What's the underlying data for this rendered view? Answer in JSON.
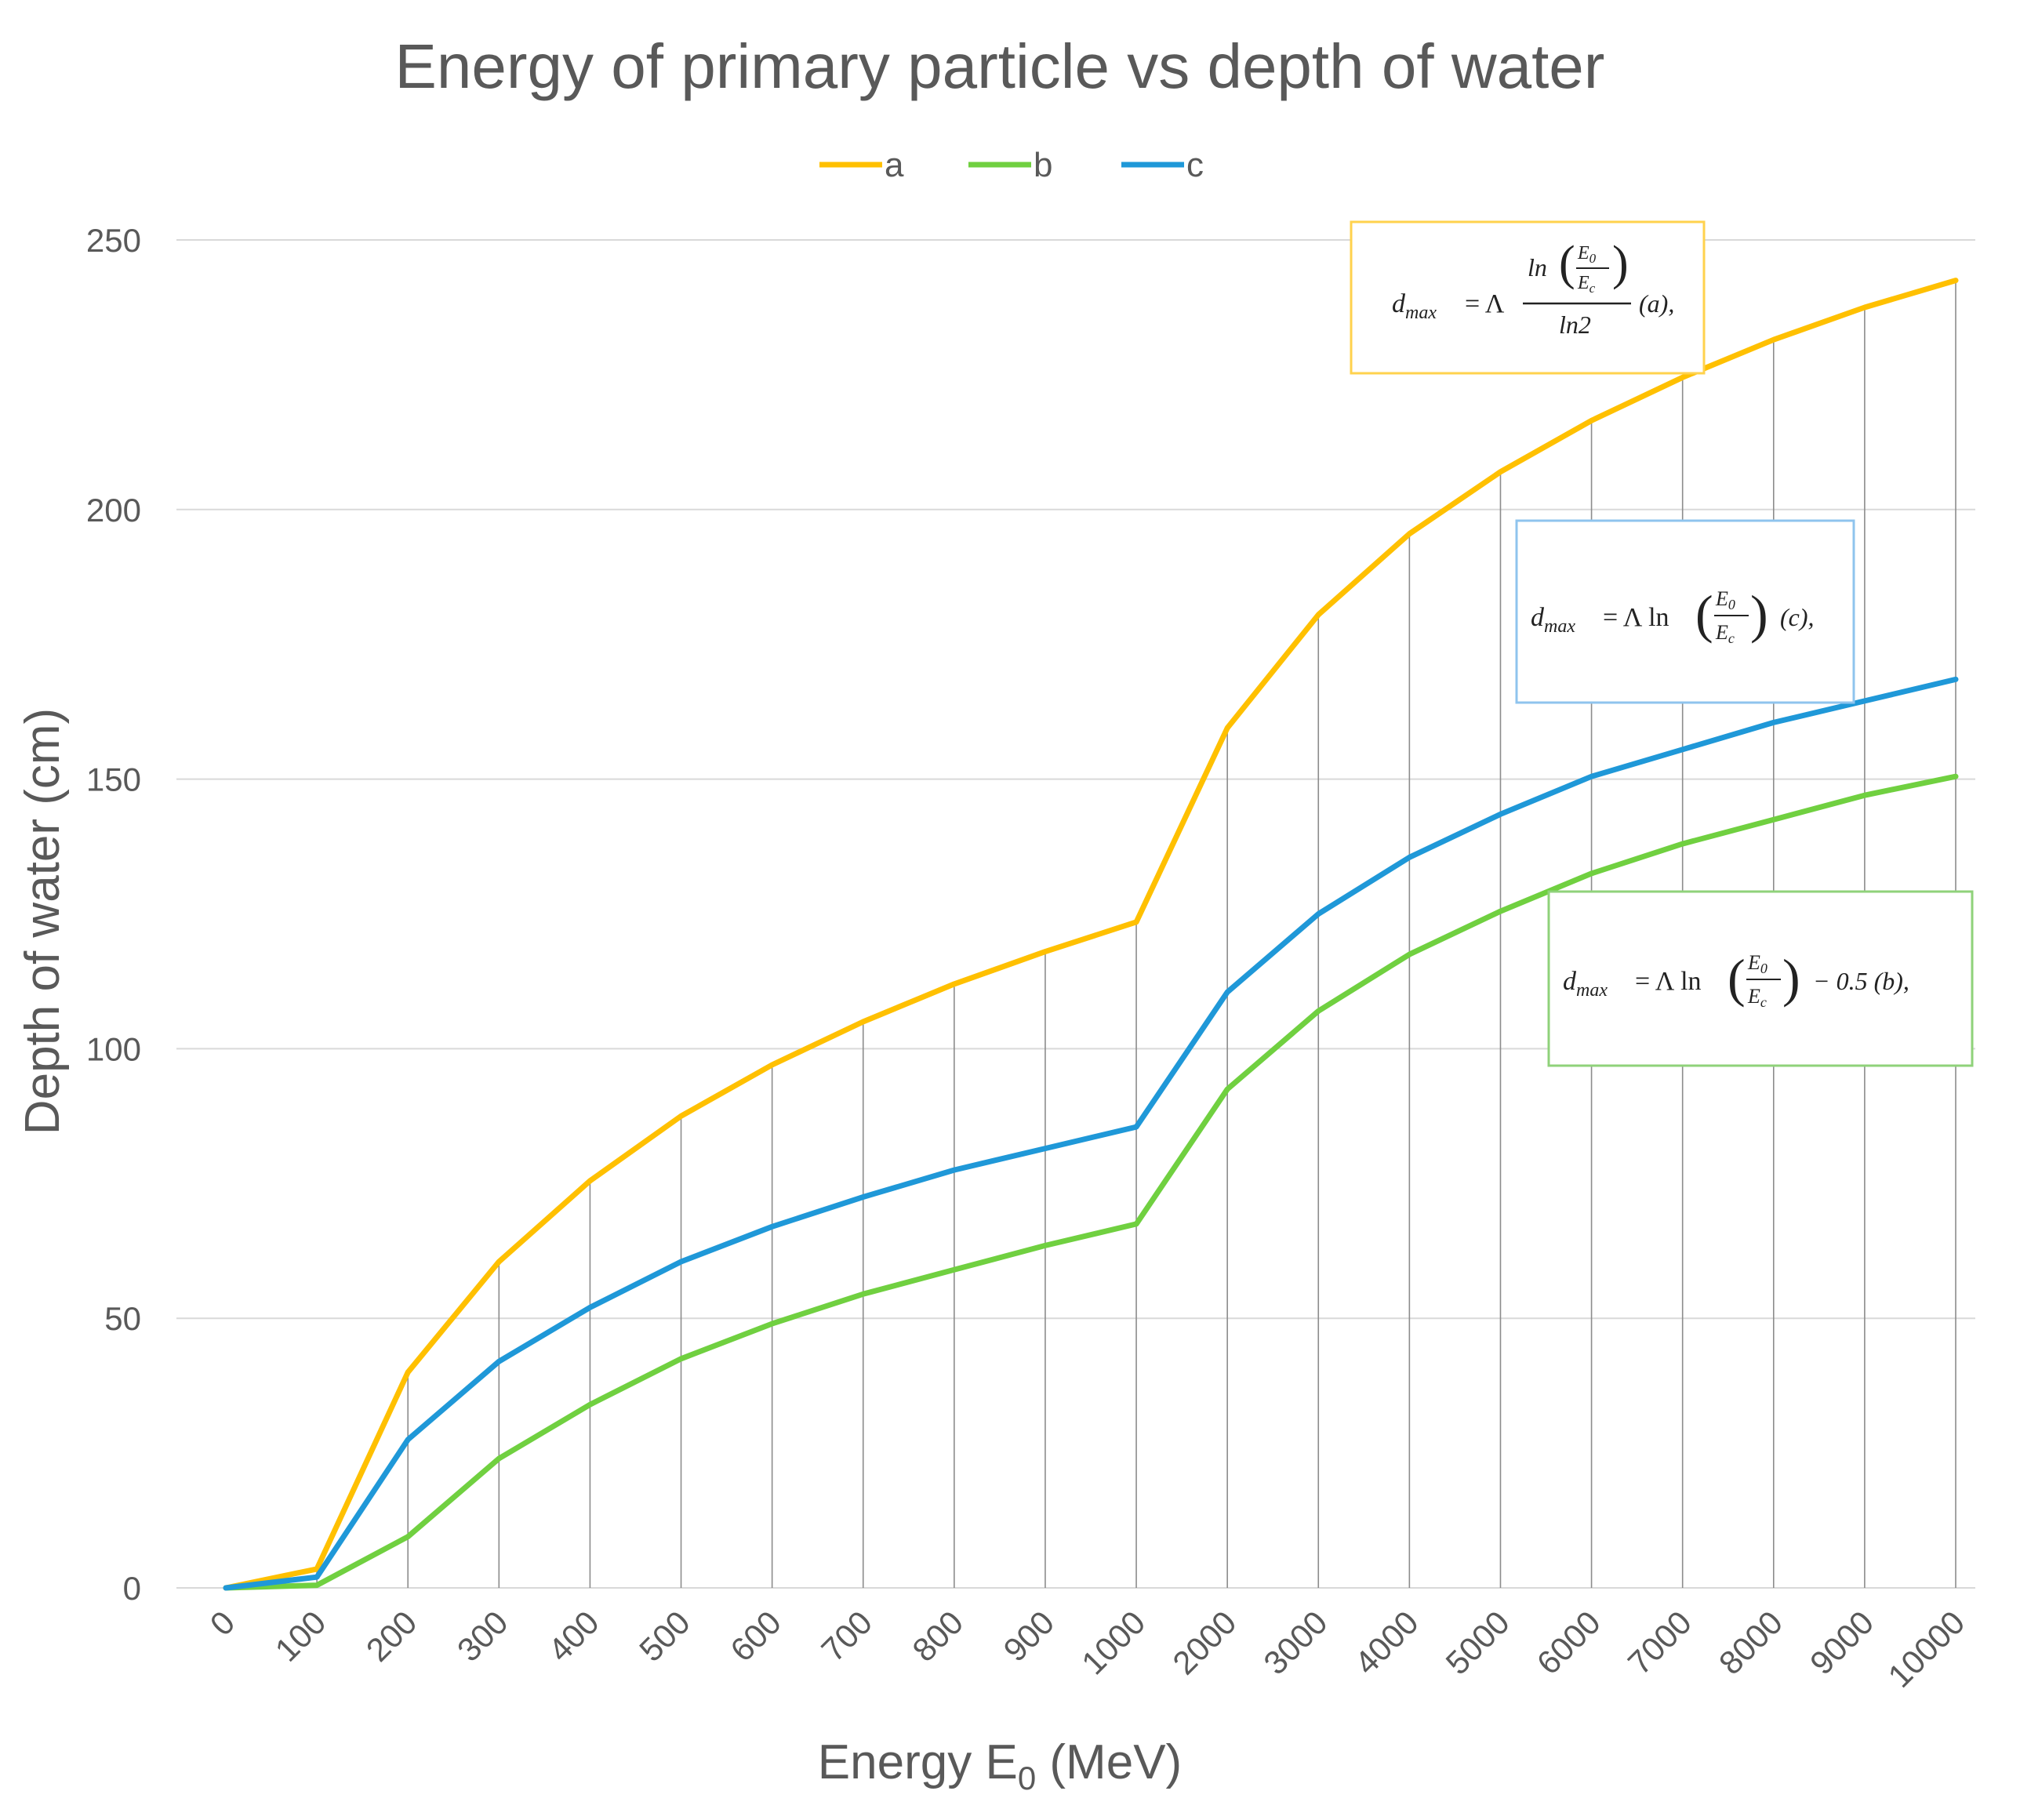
{
  "chart_data": {
    "type": "line",
    "title": "Energy of primary particle vs depth of water",
    "xlabel_main": "Energy E",
    "xlabel_sub": "0",
    "xlabel_unit": " (MeV)",
    "ylabel": "Depth of water (cm)",
    "categories": [
      "0",
      "100",
      "200",
      "300",
      "400",
      "500",
      "600",
      "700",
      "800",
      "900",
      "1000",
      "2000",
      "3000",
      "4000",
      "5000",
      "6000",
      "7000",
      "8000",
      "9000",
      "10000"
    ],
    "ylim": [
      0,
      250
    ],
    "yticks": [
      "0",
      "50",
      "100",
      "150",
      "200",
      "250"
    ],
    "grid": "horizontal and vertical",
    "legend_position": "top-center",
    "series": [
      {
        "name": "a",
        "color": "#FFC000",
        "values": [
          0,
          3.5,
          40,
          60.5,
          75.5,
          87.5,
          97,
          105,
          112,
          118,
          123.5,
          159.5,
          180.5,
          195.5,
          207,
          216.5,
          224.5,
          231.5,
          237.5,
          242.5
        ]
      },
      {
        "name": "b",
        "color": "#70D040",
        "values": [
          0,
          0.5,
          9.5,
          24,
          34,
          42.5,
          49,
          54.5,
          59,
          63.5,
          67.5,
          92.5,
          107,
          117.5,
          125.5,
          132.5,
          138,
          142.5,
          147,
          150.5
        ]
      },
      {
        "name": "c",
        "color": "#1F98D8",
        "values": [
          0,
          2,
          27.5,
          42,
          52,
          60.5,
          67,
          72.5,
          77.5,
          81.5,
          85.5,
          110.5,
          125,
          135.5,
          143.5,
          150.5,
          155.5,
          160.5,
          164.5,
          168.5
        ]
      }
    ],
    "annotations": [
      {
        "series": "a",
        "border_color": "#FFD24D",
        "lhs": "d",
        "lhs_sub": "max",
        "eq": "= Λ",
        "num": "ln",
        "num_E": "E",
        "num_E_sub": "0",
        "num_Ec": "E",
        "num_Ec_sub": "c",
        "den": "ln2",
        "suffix": "(a),"
      },
      {
        "series": "c",
        "border_color": "#8FC4EE",
        "lhs": "d",
        "lhs_sub": "max",
        "eq": "= Λ ln",
        "E": "E",
        "E_sub": "0",
        "Ec": "E",
        "Ec_sub": "c",
        "suffix": "(c),"
      },
      {
        "series": "b",
        "border_color": "#8FD27A",
        "lhs": "d",
        "lhs_sub": "max",
        "eq": "= Λ ln",
        "E": "E",
        "E_sub": "0",
        "Ec": "E",
        "Ec_sub": "c",
        "suffix": "− 0.5 (b),"
      }
    ]
  }
}
